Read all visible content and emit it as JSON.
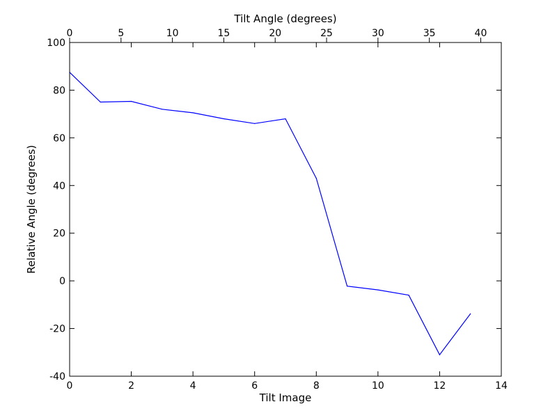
{
  "chart_data": {
    "type": "line",
    "title": "",
    "xlabel": "Tilt Image",
    "ylabel": "Relative Angle (degrees)",
    "x2label": "Tilt Angle (degrees)",
    "xlim": [
      0,
      14
    ],
    "ylim": [
      -40,
      100
    ],
    "x2lim": [
      0,
      42
    ],
    "xticks": [
      0,
      2,
      4,
      6,
      8,
      10,
      12,
      14
    ],
    "yticks": [
      -40,
      -20,
      0,
      20,
      40,
      60,
      80,
      100
    ],
    "x2ticks": [
      0,
      5,
      10,
      15,
      20,
      25,
      30,
      35,
      40
    ],
    "grid": false,
    "series": [
      {
        "color": "#0000ff",
        "x": [
          0,
          1,
          2,
          3,
          4,
          5,
          6,
          7,
          8,
          9,
          10,
          11,
          12,
          13
        ],
        "y": [
          87.5,
          75.0,
          75.3,
          72.0,
          70.5,
          68.0,
          66.0,
          68.0,
          43.0,
          -2.2,
          -3.8,
          -6.0,
          -31.0,
          -13.8
        ]
      }
    ]
  }
}
